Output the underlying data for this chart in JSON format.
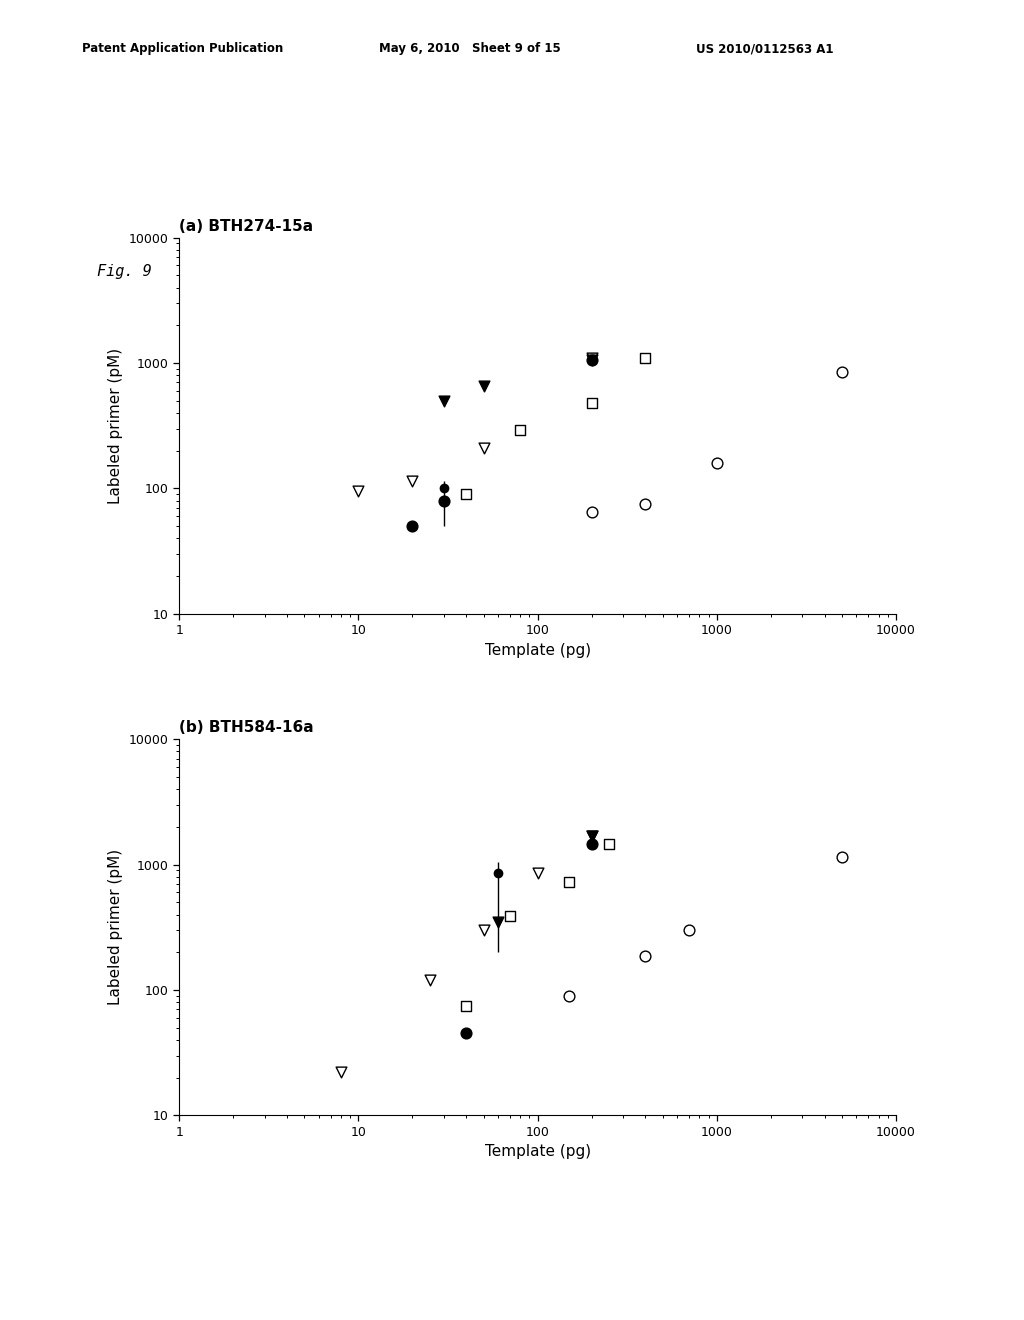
{
  "header_left": "Patent Application Publication",
  "header_mid": "May 6, 2010   Sheet 9 of 15",
  "header_right": "US 2010/0112563 A1",
  "fig_label": "Fig. 9",
  "plot_a": {
    "title": "(a) BTH274-15a",
    "xlabel": "Template (pg)",
    "ylabel": "Labeled primer (pM)",
    "xlim": [
      1,
      10000
    ],
    "ylim": [
      10,
      10000
    ],
    "series": {
      "open_triangle_down": {
        "x": [
          10,
          20,
          50,
          200
        ],
        "y": [
          95,
          115,
          210,
          1100
        ],
        "marker": "v",
        "facecolor": "white",
        "edgecolor": "black",
        "size": 60
      },
      "filled_triangle_down": {
        "x": [
          30,
          50,
          200
        ],
        "y": [
          500,
          650,
          1050
        ],
        "marker": "v",
        "facecolor": "black",
        "edgecolor": "black",
        "size": 60
      },
      "open_square": {
        "x": [
          40,
          80,
          200,
          400
        ],
        "y": [
          90,
          290,
          480,
          1100
        ],
        "marker": "s",
        "facecolor": "white",
        "edgecolor": "black",
        "size": 55
      },
      "filled_circle": {
        "x": [
          20,
          30,
          200
        ],
        "y": [
          50,
          80,
          1050
        ],
        "marker": "o",
        "facecolor": "black",
        "edgecolor": "black",
        "size": 60
      },
      "open_circle": {
        "x": [
          200,
          400,
          1000,
          5000
        ],
        "y": [
          65,
          75,
          160,
          850
        ],
        "marker": "o",
        "facecolor": "white",
        "edgecolor": "black",
        "size": 60
      },
      "errorbar_filled_circle": {
        "x": [
          30
        ],
        "y": [
          100
        ],
        "yerr_low": [
          50
        ],
        "yerr_high": [
          15
        ],
        "marker": "o",
        "facecolor": "black",
        "edgecolor": "black",
        "size": 50
      }
    }
  },
  "plot_b": {
    "title": "(b) BTH584-16a",
    "xlabel": "Template (pg)",
    "ylabel": "Labeled primer (pM)",
    "xlim": [
      1,
      10000
    ],
    "ylim": [
      10,
      10000
    ],
    "series": {
      "open_triangle_down": {
        "x": [
          8,
          25,
          50,
          100,
          200
        ],
        "y": [
          22,
          120,
          300,
          850,
          1700
        ],
        "marker": "v",
        "facecolor": "white",
        "edgecolor": "black",
        "size": 60
      },
      "filled_triangle_down": {
        "x": [
          60,
          200
        ],
        "y": [
          350,
          1700
        ],
        "marker": "v",
        "facecolor": "black",
        "edgecolor": "black",
        "size": 60
      },
      "open_square": {
        "x": [
          40,
          70,
          150,
          250
        ],
        "y": [
          75,
          390,
          720,
          1450
        ],
        "marker": "s",
        "facecolor": "white",
        "edgecolor": "black",
        "size": 55
      },
      "filled_circle": {
        "x": [
          40,
          200
        ],
        "y": [
          45,
          1450
        ],
        "marker": "o",
        "facecolor": "black",
        "edgecolor": "black",
        "size": 60
      },
      "open_circle": {
        "x": [
          150,
          400,
          700,
          5000
        ],
        "y": [
          90,
          185,
          300,
          1150
        ],
        "marker": "o",
        "facecolor": "white",
        "edgecolor": "black",
        "size": 60
      },
      "errorbar_filled_circle": {
        "x": [
          60
        ],
        "y": [
          850
        ],
        "yerr_low": [
          650
        ],
        "yerr_high": [
          200
        ],
        "marker": "o",
        "facecolor": "black",
        "edgecolor": "black",
        "size": 50
      }
    }
  },
  "background_color": "#ffffff",
  "text_color": "#000000"
}
